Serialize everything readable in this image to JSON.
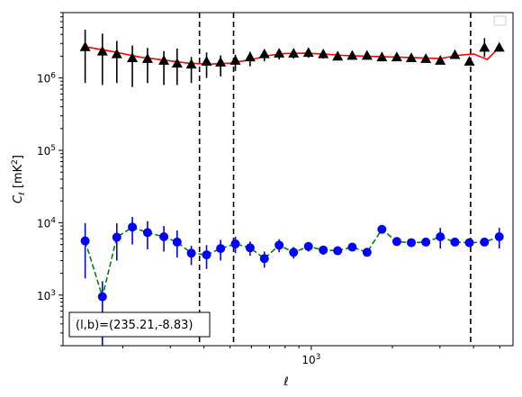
{
  "chart_data": {
    "type": "scatter",
    "xscale": "log",
    "yscale": "log",
    "xlim": [
      120,
      5600
    ],
    "ylim": [
      200,
      8000000
    ],
    "xlabel": "ℓ",
    "ylabel_main": "C",
    "ylabel_sub": "ℓ",
    "ylabel_unit_open": "  [mK",
    "ylabel_unit_sup": "2",
    "ylabel_unit_close": "]",
    "x_tick_labels": [
      {
        "value": 1000,
        "base": "10",
        "exp": "3"
      }
    ],
    "y_tick_labels": [
      {
        "value": 1000,
        "base": "10",
        "exp": "3"
      },
      {
        "value": 10000,
        "base": "10",
        "exp": "4"
      },
      {
        "value": 100000,
        "base": "10",
        "exp": "5"
      },
      {
        "value": 1000000,
        "base": "10",
        "exp": "6"
      }
    ],
    "vlines": [
      385,
      515,
      3900
    ],
    "annotation": "(l,b)=(235.21,-8.83)",
    "legend": "upper right (empty)",
    "colors": {
      "upper_points": "#000000",
      "upper_curve": "#ff0000",
      "lower_points": "#0000ff",
      "lower_curve": "#008000"
    },
    "series": [
      {
        "marker": "triangle",
        "x": [
          145,
          168,
          190,
          217,
          247,
          284,
          318,
          359,
          409,
          461,
          523,
          593,
          670,
          760,
          860,
          976,
          1108,
          1253,
          1419,
          1610,
          1828,
          2076,
          2350,
          2660,
          3010,
          3410,
          3860,
          4390,
          4980
        ],
        "y": [
          2700000,
          2350000,
          2150000,
          1900000,
          1850000,
          1750000,
          1600000,
          1550000,
          1700000,
          1650000,
          1750000,
          1950000,
          2150000,
          2200000,
          2200000,
          2250000,
          2150000,
          2000000,
          2050000,
          2050000,
          1950000,
          1950000,
          1900000,
          1850000,
          1750000,
          2100000,
          1700000,
          2650000,
          2650000
        ],
        "yerr_lo": [
          1850000,
          1550000,
          1300000,
          1150000,
          1000000,
          950000,
          800000,
          700000,
          700000,
          600000,
          500000,
          500000,
          450000,
          400000,
          350000,
          350000,
          300000,
          250000,
          250000,
          200000,
          200000,
          180000,
          180000,
          170000,
          160000,
          150000,
          130000,
          700000,
          0
        ],
        "yerr_hi": [
          1950000,
          1750000,
          1100000,
          900000,
          750000,
          600000,
          950000,
          400000,
          550000,
          400000,
          350000,
          350000,
          300000,
          300000,
          250000,
          250000,
          250000,
          200000,
          200000,
          180000,
          180000,
          170000,
          160000,
          150000,
          150000,
          150000,
          130000,
          900000,
          0
        ],
        "line_x": [
          145,
          180,
          230,
          290,
          350,
          420,
          500,
          600,
          700,
          800,
          950,
          1100,
          1300,
          1600,
          2000,
          2500,
          3000,
          3500,
          4000,
          4500,
          4980
        ],
        "line_y": [
          2700000,
          2350000,
          1950000,
          1750000,
          1600000,
          1550000,
          1600000,
          1800000,
          2050000,
          2180000,
          2200000,
          2150000,
          2050000,
          2000000,
          1950000,
          1900000,
          1850000,
          2050000,
          2150000,
          1800000,
          2650000
        ]
      },
      {
        "marker": "circle",
        "x": [
          145,
          168,
          190,
          217,
          247,
          284,
          318,
          359,
          409,
          461,
          523,
          593,
          670,
          760,
          860,
          976,
          1108,
          1253,
          1419,
          1610,
          1828,
          2076,
          2350,
          2660,
          3010,
          3410,
          3860,
          4390,
          4980
        ],
        "y": [
          5600,
          950,
          6300,
          8700,
          7300,
          6400,
          5400,
          3800,
          3600,
          4400,
          5100,
          4500,
          3200,
          4900,
          3900,
          4700,
          4200,
          4100,
          4600,
          3900,
          8100,
          5500,
          5300,
          5400,
          6400,
          5400,
          5300,
          5400,
          6400
        ],
        "yerr_lo": [
          3900,
          750,
          3300,
          3700,
          3000,
          2400,
          2100,
          1200,
          1300,
          1400,
          1300,
          1000,
          800,
          1000,
          700,
          700,
          600,
          500,
          500,
          400,
          600,
          400,
          400,
          400,
          2000,
          400,
          400,
          400,
          2000
        ],
        "yerr_hi": [
          4300,
          600,
          3500,
          3300,
          3200,
          2600,
          2400,
          1000,
          1300,
          1400,
          1300,
          1000,
          800,
          1000,
          700,
          700,
          600,
          500,
          500,
          400,
          600,
          400,
          400,
          400,
          2100,
          400,
          400,
          400,
          2100
        ]
      }
    ]
  }
}
